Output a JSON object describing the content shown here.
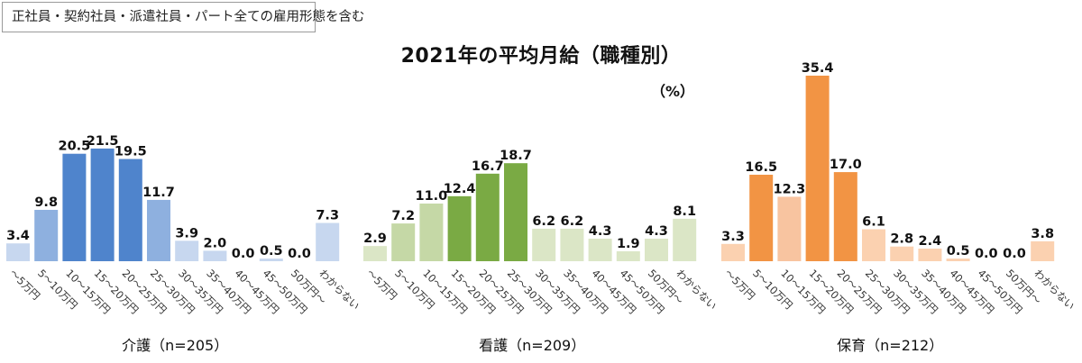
{
  "note": "正社員・契約社員・派遣社員・パート全ての雇用形態を含む",
  "chart_data": {
    "type": "bar",
    "title": "2021年の平均月給（職種別）",
    "unit": "（%）",
    "categories": [
      "〜5万円",
      "5〜10万円",
      "10〜15万円",
      "15〜20万円",
      "20〜25万円",
      "25〜30万円",
      "30〜35万円",
      "35〜40万円",
      "40〜45万円",
      "45〜50万円",
      "50万円〜",
      "わからない"
    ],
    "ylim": [
      0,
      36
    ],
    "panels": [
      {
        "label": "介護（n=205）",
        "values": [
          3.4,
          9.8,
          20.5,
          21.5,
          19.5,
          11.7,
          3.9,
          2.0,
          0.0,
          0.5,
          0.0,
          7.3
        ],
        "value_labels": [
          "3.4",
          "9.8",
          "20.5",
          "21.5",
          "19.5",
          "11.7",
          "3.9",
          "2.0",
          "0.0",
          "0.5",
          "0.0",
          "7.3"
        ],
        "colors": [
          "#c7d7ef",
          "#8eb0df",
          "#4f84cc",
          "#4f84cc",
          "#4f84cc",
          "#8eb0df",
          "#c7d7ef",
          "#c7d7ef",
          "#c7d7ef",
          "#c7d7ef",
          "#c7d7ef",
          "#c7d7ef"
        ]
      },
      {
        "label": "看護（n=209）",
        "values": [
          2.9,
          7.2,
          11.0,
          12.4,
          16.7,
          18.7,
          6.2,
          6.2,
          4.3,
          1.9,
          4.3,
          8.1
        ],
        "value_labels": [
          "2.9",
          "7.2",
          "11.0",
          "12.4",
          "16.7",
          "18.7",
          "6.2",
          "6.2",
          "4.3",
          "1.9",
          "4.3",
          "8.1"
        ],
        "colors": [
          "#dbe6c6",
          "#c5d8a6",
          "#c5d8a6",
          "#7aaa44",
          "#7aaa44",
          "#7aaa44",
          "#dbe6c6",
          "#dbe6c6",
          "#dbe6c6",
          "#dbe6c6",
          "#dbe6c6",
          "#dbe6c6"
        ]
      },
      {
        "label": "保育（n=212）",
        "values": [
          3.3,
          16.5,
          12.3,
          35.4,
          17.0,
          6.1,
          2.8,
          2.4,
          0.5,
          0.0,
          0.0,
          3.8
        ],
        "value_labels": [
          "3.3",
          "16.5",
          "12.3",
          "35.4",
          "17.0",
          "6.1",
          "2.8",
          "2.4",
          "0.5",
          "0.0",
          "0.0",
          "3.8"
        ],
        "colors": [
          "#fbd1b0",
          "#f29444",
          "#f8c4a0",
          "#f29444",
          "#f29444",
          "#fbd1b0",
          "#fbd1b0",
          "#fbd1b0",
          "#fbd1b0",
          "#fbd1b0",
          "#fbd1b0",
          "#fbd1b0"
        ]
      }
    ]
  }
}
